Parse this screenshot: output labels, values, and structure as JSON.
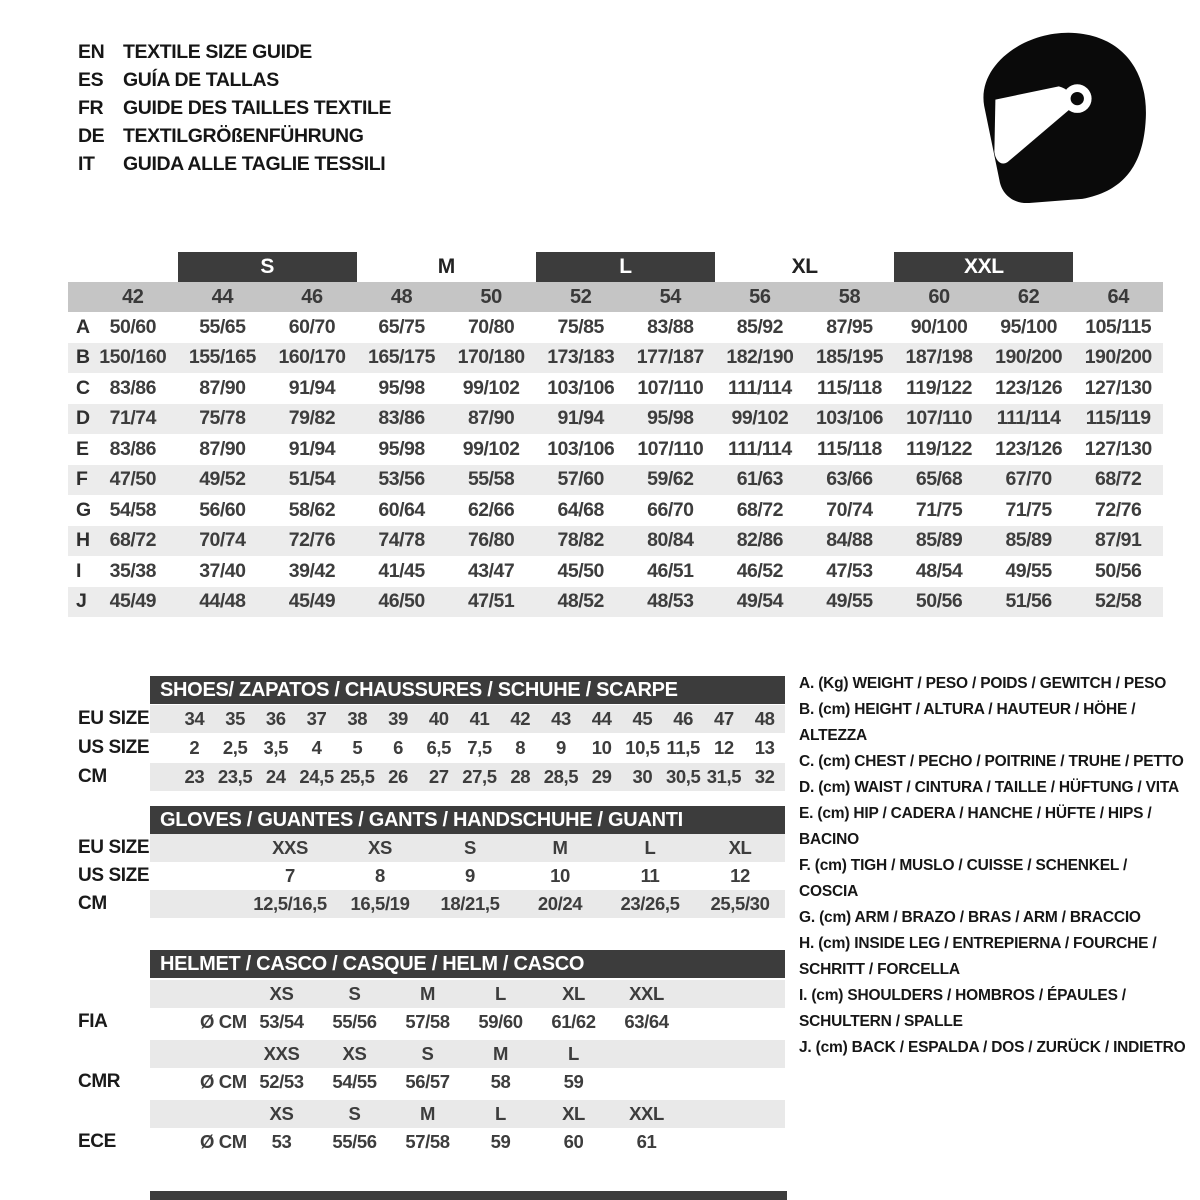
{
  "colors": {
    "header_dark": "#3c3c3c",
    "column_strip": "#c5c5c5",
    "row_stripe": "#ececec",
    "band_gray": "#e9e9e9",
    "text_dark": "#3d3d3d",
    "ink": "#141414"
  },
  "header": {
    "languages": [
      {
        "code": "EN",
        "title": "TEXTILE SIZE GUIDE"
      },
      {
        "code": "ES",
        "title": "GUÍA DE TALLAS"
      },
      {
        "code": "FR",
        "title": "GUIDE DES TAILLES TEXTILE"
      },
      {
        "code": "DE",
        "title": "TEXTILGRÖßENFÜHRUNG"
      },
      {
        "code": "IT",
        "title": "GUIDA ALLE TAGLIE TESSILI"
      }
    ],
    "logo_icon": "racing-helmet-icon"
  },
  "textile_table": {
    "size_groups": [
      {
        "label": "S",
        "dark": true
      },
      {
        "label": "M",
        "dark": false
      },
      {
        "label": "L",
        "dark": true
      },
      {
        "label": "XL",
        "dark": false
      },
      {
        "label": "XXL",
        "dark": true
      }
    ],
    "columns": [
      "42",
      "44",
      "46",
      "48",
      "50",
      "52",
      "54",
      "56",
      "58",
      "60",
      "62",
      "64"
    ],
    "rows": [
      {
        "label": "A",
        "values": [
          "50/60",
          "55/65",
          "60/70",
          "65/75",
          "70/80",
          "75/85",
          "83/88",
          "85/92",
          "87/95",
          "90/100",
          "95/100",
          "105/115"
        ]
      },
      {
        "label": "B",
        "values": [
          "150/160",
          "155/165",
          "160/170",
          "165/175",
          "170/180",
          "173/183",
          "177/187",
          "182/190",
          "185/195",
          "187/198",
          "190/200",
          "190/200"
        ]
      },
      {
        "label": "C",
        "values": [
          "83/86",
          "87/90",
          "91/94",
          "95/98",
          "99/102",
          "103/106",
          "107/110",
          "111/114",
          "115/118",
          "119/122",
          "123/126",
          "127/130"
        ]
      },
      {
        "label": "D",
        "values": [
          "71/74",
          "75/78",
          "79/82",
          "83/86",
          "87/90",
          "91/94",
          "95/98",
          "99/102",
          "103/106",
          "107/110",
          "111/114",
          "115/119"
        ]
      },
      {
        "label": "E",
        "values": [
          "83/86",
          "87/90",
          "91/94",
          "95/98",
          "99/102",
          "103/106",
          "107/110",
          "111/114",
          "115/118",
          "119/122",
          "123/126",
          "127/130"
        ]
      },
      {
        "label": "F",
        "values": [
          "47/50",
          "49/52",
          "51/54",
          "53/56",
          "55/58",
          "57/60",
          "59/62",
          "61/63",
          "63/66",
          "65/68",
          "67/70",
          "68/72"
        ]
      },
      {
        "label": "G",
        "values": [
          "54/58",
          "56/60",
          "58/62",
          "60/64",
          "62/66",
          "64/68",
          "66/70",
          "68/72",
          "70/74",
          "71/75",
          "71/75",
          "72/76"
        ]
      },
      {
        "label": "H",
        "values": [
          "68/72",
          "70/74",
          "72/76",
          "74/78",
          "76/80",
          "78/82",
          "80/84",
          "82/86",
          "84/88",
          "85/89",
          "85/89",
          "87/91"
        ]
      },
      {
        "label": "I",
        "values": [
          "35/38",
          "37/40",
          "39/42",
          "41/45",
          "43/47",
          "45/50",
          "46/51",
          "46/52",
          "47/53",
          "48/54",
          "49/55",
          "50/56"
        ]
      },
      {
        "label": "J",
        "values": [
          "45/49",
          "44/48",
          "45/49",
          "46/50",
          "47/51",
          "48/52",
          "48/53",
          "49/54",
          "49/55",
          "50/56",
          "51/56",
          "52/58"
        ]
      }
    ]
  },
  "shoes_table": {
    "title": "SHOES/ ZAPATOS / CHAUSSURES / SCHUHE / SCARPE",
    "rows": [
      {
        "label": "EU SIZE",
        "values": [
          "34",
          "35",
          "36",
          "37",
          "38",
          "39",
          "40",
          "41",
          "42",
          "43",
          "44",
          "45",
          "46",
          "47",
          "48"
        ]
      },
      {
        "label": "US SIZE",
        "values": [
          "2",
          "2,5",
          "3,5",
          "4",
          "5",
          "6",
          "6,5",
          "7,5",
          "8",
          "9",
          "10",
          "10,5",
          "11,5",
          "12",
          "13"
        ]
      },
      {
        "label": "CM",
        "values": [
          "23",
          "23,5",
          "24",
          "24,5",
          "25,5",
          "26",
          "27",
          "27,5",
          "28",
          "28,5",
          "29",
          "30",
          "30,5",
          "31,5",
          "32"
        ]
      }
    ]
  },
  "gloves_table": {
    "title": "GLOVES / GUANTES / GANTS / HANDSCHUHE / GUANTI",
    "rows": [
      {
        "label": "EU SIZE",
        "values": [
          "XXS",
          "XS",
          "S",
          "M",
          "L",
          "XL"
        ]
      },
      {
        "label": "US SIZE",
        "values": [
          "7",
          "8",
          "9",
          "10",
          "11",
          "12"
        ]
      },
      {
        "label": "CM",
        "values": [
          "12,5/16,5",
          "16,5/19",
          "18/21,5",
          "20/24",
          "23/26,5",
          "25,5/30"
        ]
      }
    ]
  },
  "helmet_table": {
    "title": "HELMET / CASCO / CASQUE / HELM / CASCO",
    "unit_label": "Ø CM",
    "sections": [
      {
        "standard": "FIA",
        "sizes": [
          "XS",
          "S",
          "M",
          "L",
          "XL",
          "XXL"
        ],
        "values": [
          "53/54",
          "55/56",
          "57/58",
          "59/60",
          "61/62",
          "63/64"
        ]
      },
      {
        "standard": "CMR",
        "sizes": [
          "XXS",
          "XS",
          "S",
          "M",
          "L"
        ],
        "values": [
          "52/53",
          "54/55",
          "56/57",
          "58",
          "59"
        ]
      },
      {
        "standard": "ECE",
        "sizes": [
          "XS",
          "S",
          "M",
          "L",
          "XL",
          "XXL"
        ],
        "values": [
          "53",
          "55/56",
          "57/58",
          "59",
          "60",
          "61"
        ]
      }
    ]
  },
  "legend": {
    "items": [
      "A. (Kg) WEIGHT / PESO / POIDS / GEWITCH / PESO",
      "B. (cm) HEIGHT / ALTURA / HAUTEUR / HÖHE / ALTEZZA",
      "C. (cm) CHEST / PECHO / POITRINE / TRUHE / PETTO",
      "D. (cm) WAIST / CINTURA / TAILLE / HÜFTUNG / VITA",
      "E. (cm) HIP / CADERA / HANCHE / HÜFTE / HIPS / BACINO",
      "F. (cm) TIGH / MUSLO / CUISSE / SCHENKEL / COSCIA",
      "G. (cm) ARM / BRAZO / BRAS / ARM / BRACCIO",
      "H. (cm) INSIDE LEG / ENTREPIERNA / FOURCHE / SCHRITT / FORCELLA",
      "I. (cm) SHOULDERS / HOMBROS / ÉPAULES / SCHULTERN / SPALLE",
      "J. (cm) BACK / ESPALDA / DOS / ZURÜCK / INDIETRO"
    ]
  }
}
